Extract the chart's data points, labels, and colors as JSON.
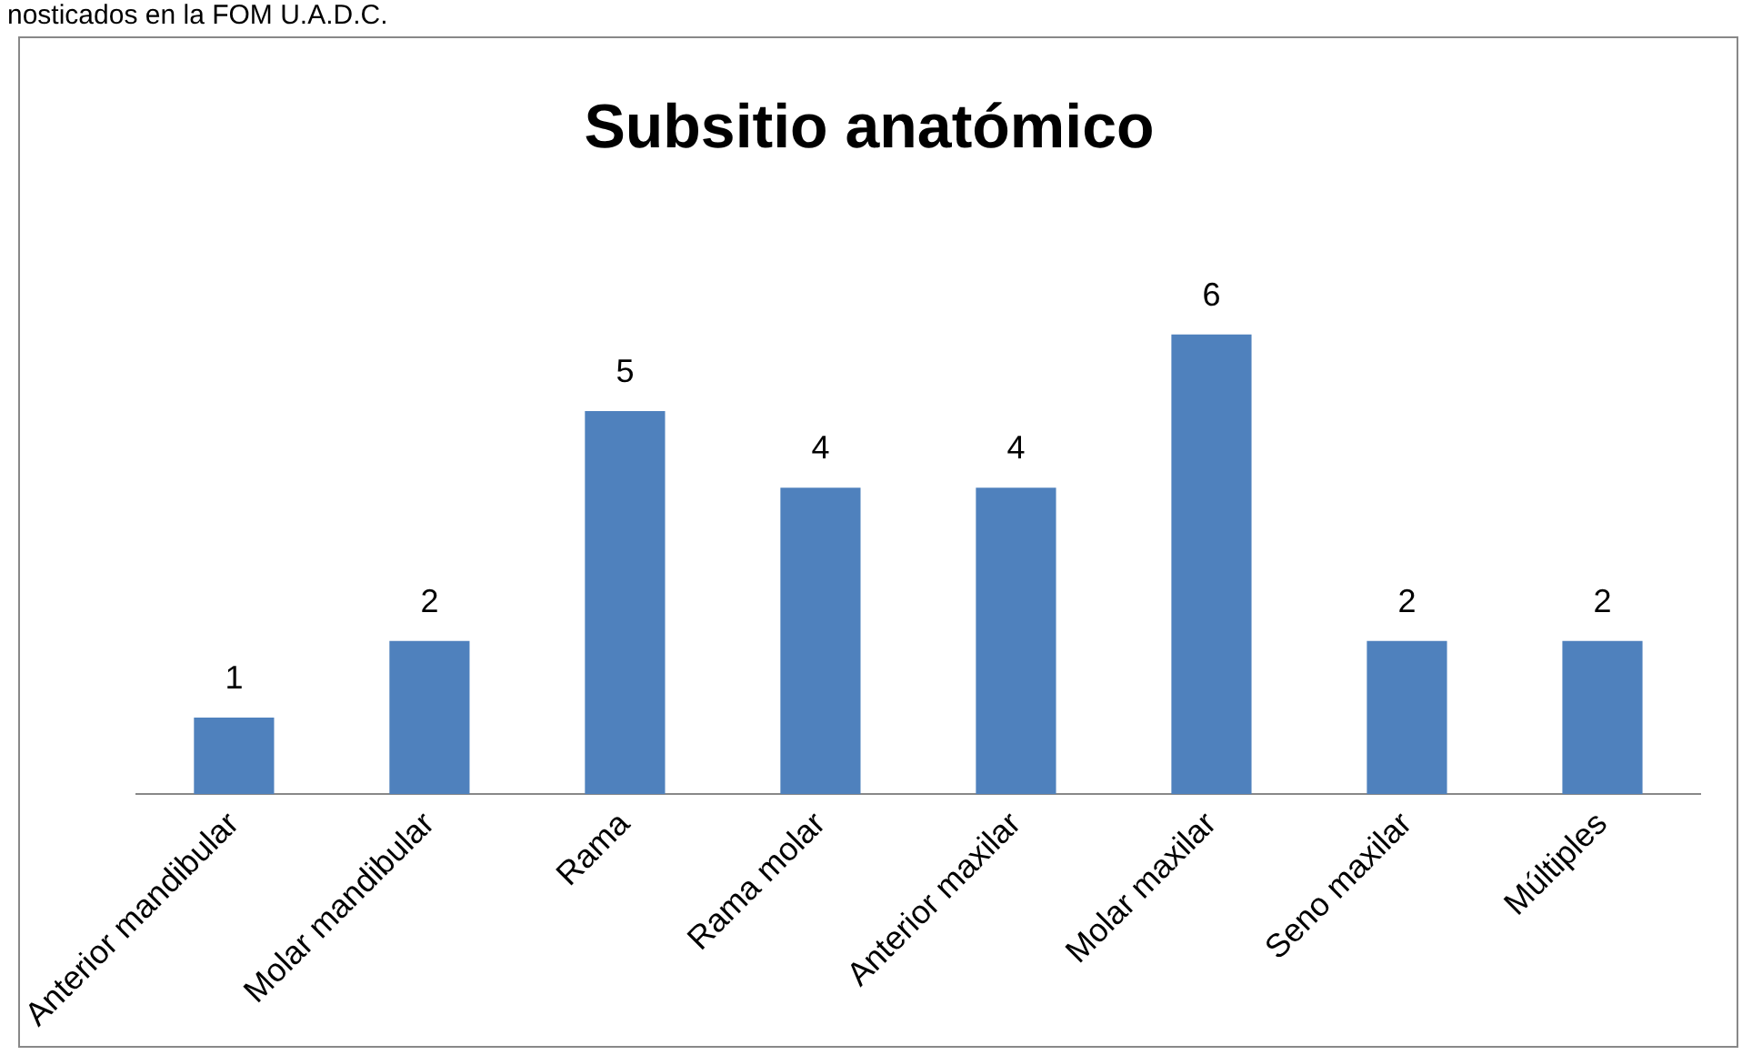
{
  "chart_data": {
    "type": "bar",
    "title": "Subsitio anatómico",
    "annotations": [
      "nosticados en la FOM U.A.D.C."
    ],
    "categories": [
      "Anterior mandibular",
      "Molar mandibular",
      "Rama",
      "Rama molar",
      "Anterior maxilar",
      "Molar maxilar",
      "Seno maxilar",
      "Múltiples"
    ],
    "values": [
      1,
      2,
      5,
      4,
      4,
      6,
      2,
      2
    ],
    "color": "#4f81bd",
    "data_labels": true,
    "grid": false,
    "legend": false
  }
}
